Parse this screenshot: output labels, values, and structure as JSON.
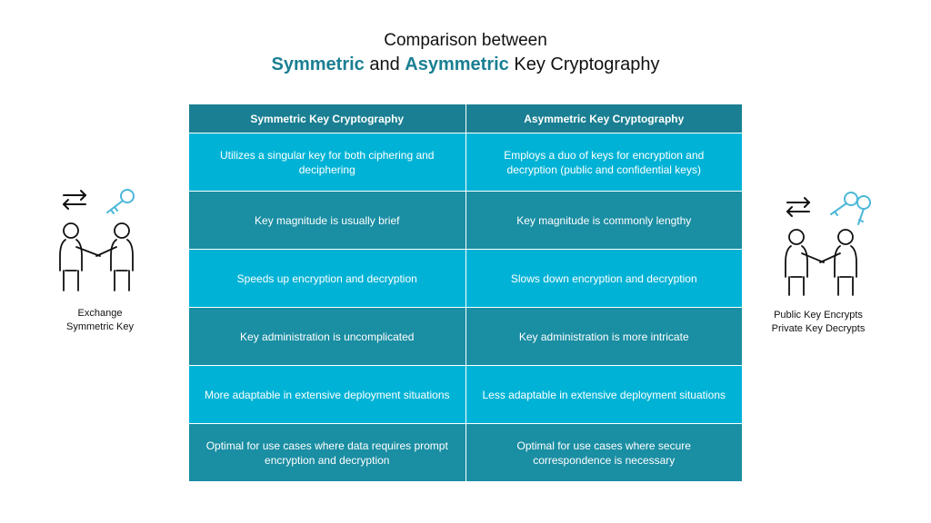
{
  "title": {
    "line1": "Comparison between",
    "line2_part1": "Symmetric",
    "line2_part2": " and ",
    "line2_part3": "Asymmetric",
    "line2_part4": " Key Cryptography"
  },
  "table": {
    "headers": [
      "Symmetric Key Cryptography",
      "Asymmetric Key Cryptography"
    ],
    "rows": [
      [
        "Utilizes a singular key for both ciphering and deciphering",
        "Employs a duo of keys for encryption and decryption (public and confidential keys)"
      ],
      [
        "Key magnitude is usually brief",
        "Key magnitude is commonly lengthy"
      ],
      [
        "Speeds up encryption and decryption",
        "Slows down encryption and decryption"
      ],
      [
        "Key administration is uncomplicated",
        "Key administration is more intricate"
      ],
      [
        "More adaptable in extensive deployment situations",
        "Less adaptable in extensive deployment situations"
      ],
      [
        "Optimal for use cases where data requires prompt encryption and decryption",
        "Optimal for use cases where secure correspondence is necessary"
      ]
    ]
  },
  "left_panel": {
    "caption_line1": "Exchange",
    "caption_line2": "Symmetric Key"
  },
  "right_panel": {
    "caption_line1": "Public Key Encrypts",
    "caption_line2": "Private Key Decrypts"
  },
  "colors": {
    "accent": "#1a7f93",
    "row_light": "#00b3d6",
    "row_dark": "#1a8ea3",
    "key_icon": "#4cb8d8"
  }
}
